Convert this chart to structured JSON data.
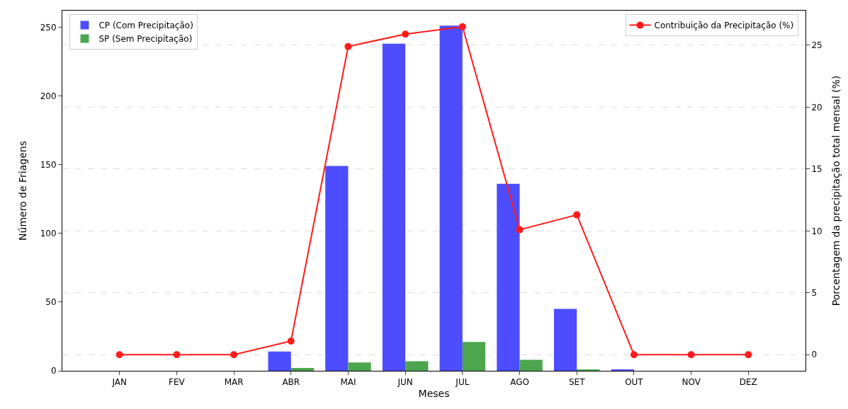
{
  "chart_data": {
    "type": "bar",
    "xlabel": "Meses",
    "ylabel": "Número de Friagens",
    "y2label": "Porcentagem da precipitação total mensal (%)",
    "categories": [
      "JAN",
      "FEV",
      "MAR",
      "ABR",
      "MAI",
      "JUN",
      "JUL",
      "AGO",
      "SET",
      "OUT",
      "NOV",
      "DEZ"
    ],
    "series": [
      {
        "name": "CP (Com Precipitação)",
        "color": "#4d4dff",
        "values": [
          0,
          0,
          0,
          14,
          149,
          238,
          251,
          136,
          45,
          1,
          0,
          0
        ]
      },
      {
        "name": "SP (Sem Precipitação)",
        "color": "#4da64d",
        "values": [
          0,
          0,
          0,
          2,
          6,
          7,
          21,
          8,
          1,
          0,
          0,
          0
        ]
      },
      {
        "name": "Contribuição da Precipitação (%)",
        "type": "line",
        "axis": "y2",
        "color": "#ff1a1a",
        "marker": "circle",
        "line_style": "solid",
        "values": [
          0,
          0,
          0,
          1.1,
          24.9,
          25.9,
          26.5,
          10.1,
          11.3,
          0,
          0,
          0
        ]
      }
    ],
    "ylim": [
      0,
      262
    ],
    "yticks": [
      0,
      50,
      100,
      150,
      200,
      250
    ],
    "y2lim": [
      -1.3,
      27.8
    ],
    "y2ticks": [
      0,
      5,
      10,
      15,
      20,
      25
    ],
    "grid": "y",
    "legend": "top"
  }
}
